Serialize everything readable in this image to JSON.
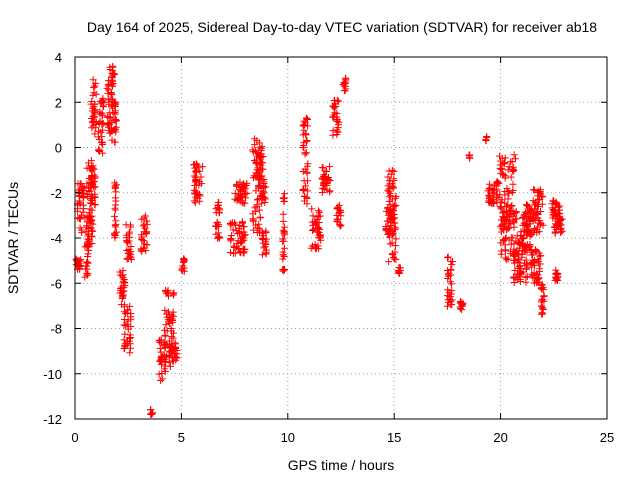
{
  "chart_data": {
    "type": "scatter",
    "title": "Day 164 of 2025, Sidereal Day-to-day VTEC variation (SDTVAR) for receiver ab18",
    "xlabel": "GPS time / hours",
    "ylabel": "SDTVAR / TECUs",
    "xlim": [
      0,
      25
    ],
    "ylim": [
      -12,
      4
    ],
    "xticks": [
      0,
      5,
      10,
      15,
      20,
      25
    ],
    "yticks": [
      -12,
      -10,
      -8,
      -6,
      -4,
      -2,
      0,
      2,
      4
    ],
    "grid": true,
    "marker": "+",
    "color": "#ff0000",
    "segments": [
      [
        0.05,
        0.3,
        -5.4,
        -4.9
      ],
      [
        0.1,
        0.45,
        -3.8,
        -1.5
      ],
      [
        0.45,
        0.65,
        -5.8,
        -3.0
      ],
      [
        0.55,
        0.85,
        -4.5,
        -0.5
      ],
      [
        0.65,
        0.95,
        -2.6,
        -0.8
      ],
      [
        0.75,
        1.0,
        0.5,
        3.1
      ],
      [
        1.1,
        1.35,
        -0.5,
        2.2
      ],
      [
        1.5,
        1.85,
        0.5,
        3.6
      ],
      [
        1.7,
        1.95,
        0.2,
        3.4
      ],
      [
        1.85,
        1.95,
        -4.0,
        -1.5
      ],
      [
        2.1,
        2.35,
        -7.0,
        -5.3
      ],
      [
        2.3,
        2.65,
        -9.2,
        -7.0
      ],
      [
        2.4,
        2.65,
        -5.0,
        -3.4
      ],
      [
        3.1,
        3.4,
        -4.6,
        -3.0
      ],
      [
        3.55,
        3.65,
        -11.8,
        -11.5
      ],
      [
        3.95,
        4.25,
        -10.3,
        -8.5
      ],
      [
        4.2,
        4.65,
        -9.7,
        -6.3
      ],
      [
        4.4,
        4.8,
        -9.5,
        -8.5
      ],
      [
        5.0,
        5.15,
        -5.5,
        -4.9
      ],
      [
        5.55,
        6.0,
        -2.5,
        -0.7
      ],
      [
        6.6,
        6.8,
        -4.2,
        -2.4
      ],
      [
        7.3,
        8.0,
        -4.7,
        -3.2
      ],
      [
        7.5,
        8.1,
        -2.5,
        -1.5
      ],
      [
        8.35,
        8.8,
        -3.8,
        0.5
      ],
      [
        8.5,
        8.95,
        -2.5,
        -0.2
      ],
      [
        8.8,
        9.0,
        -4.8,
        -3.5
      ],
      [
        9.75,
        9.85,
        -5.5,
        -2.0
      ],
      [
        10.7,
        10.95,
        -2.5,
        1.3
      ],
      [
        11.1,
        11.55,
        -4.5,
        -2.5
      ],
      [
        11.6,
        12.0,
        -2.0,
        -0.8
      ],
      [
        12.1,
        12.4,
        0.5,
        2.1
      ],
      [
        12.6,
        12.75,
        2.5,
        3.1
      ],
      [
        12.3,
        12.5,
        -3.5,
        -2.5
      ],
      [
        14.6,
        15.05,
        -4.0,
        -2.5
      ],
      [
        14.7,
        15.1,
        -5.3,
        -1.0
      ],
      [
        15.2,
        15.3,
        -5.6,
        -5.2
      ],
      [
        17.5,
        17.75,
        -7.2,
        -4.8
      ],
      [
        18.1,
        18.25,
        -7.2,
        -6.8
      ],
      [
        18.5,
        18.55,
        -0.5,
        -0.3
      ],
      [
        19.3,
        19.35,
        0.3,
        0.5
      ],
      [
        19.4,
        19.9,
        -2.5,
        -1.5
      ],
      [
        19.9,
        20.7,
        -3.5,
        -0.3
      ],
      [
        20.0,
        21.4,
        -5.0,
        -2.8
      ],
      [
        20.6,
        21.3,
        -6.0,
        -4.2
      ],
      [
        21.2,
        21.6,
        -4.0,
        -2.5
      ],
      [
        21.4,
        21.9,
        -6.0,
        -4.5
      ],
      [
        21.5,
        22.0,
        -3.8,
        -1.8
      ],
      [
        21.9,
        22.05,
        -7.5,
        -6.0
      ],
      [
        22.4,
        22.8,
        -3.2,
        -2.2
      ],
      [
        22.5,
        22.9,
        -3.8,
        -3.0
      ],
      [
        22.55,
        22.75,
        -5.9,
        -5.4
      ]
    ]
  }
}
